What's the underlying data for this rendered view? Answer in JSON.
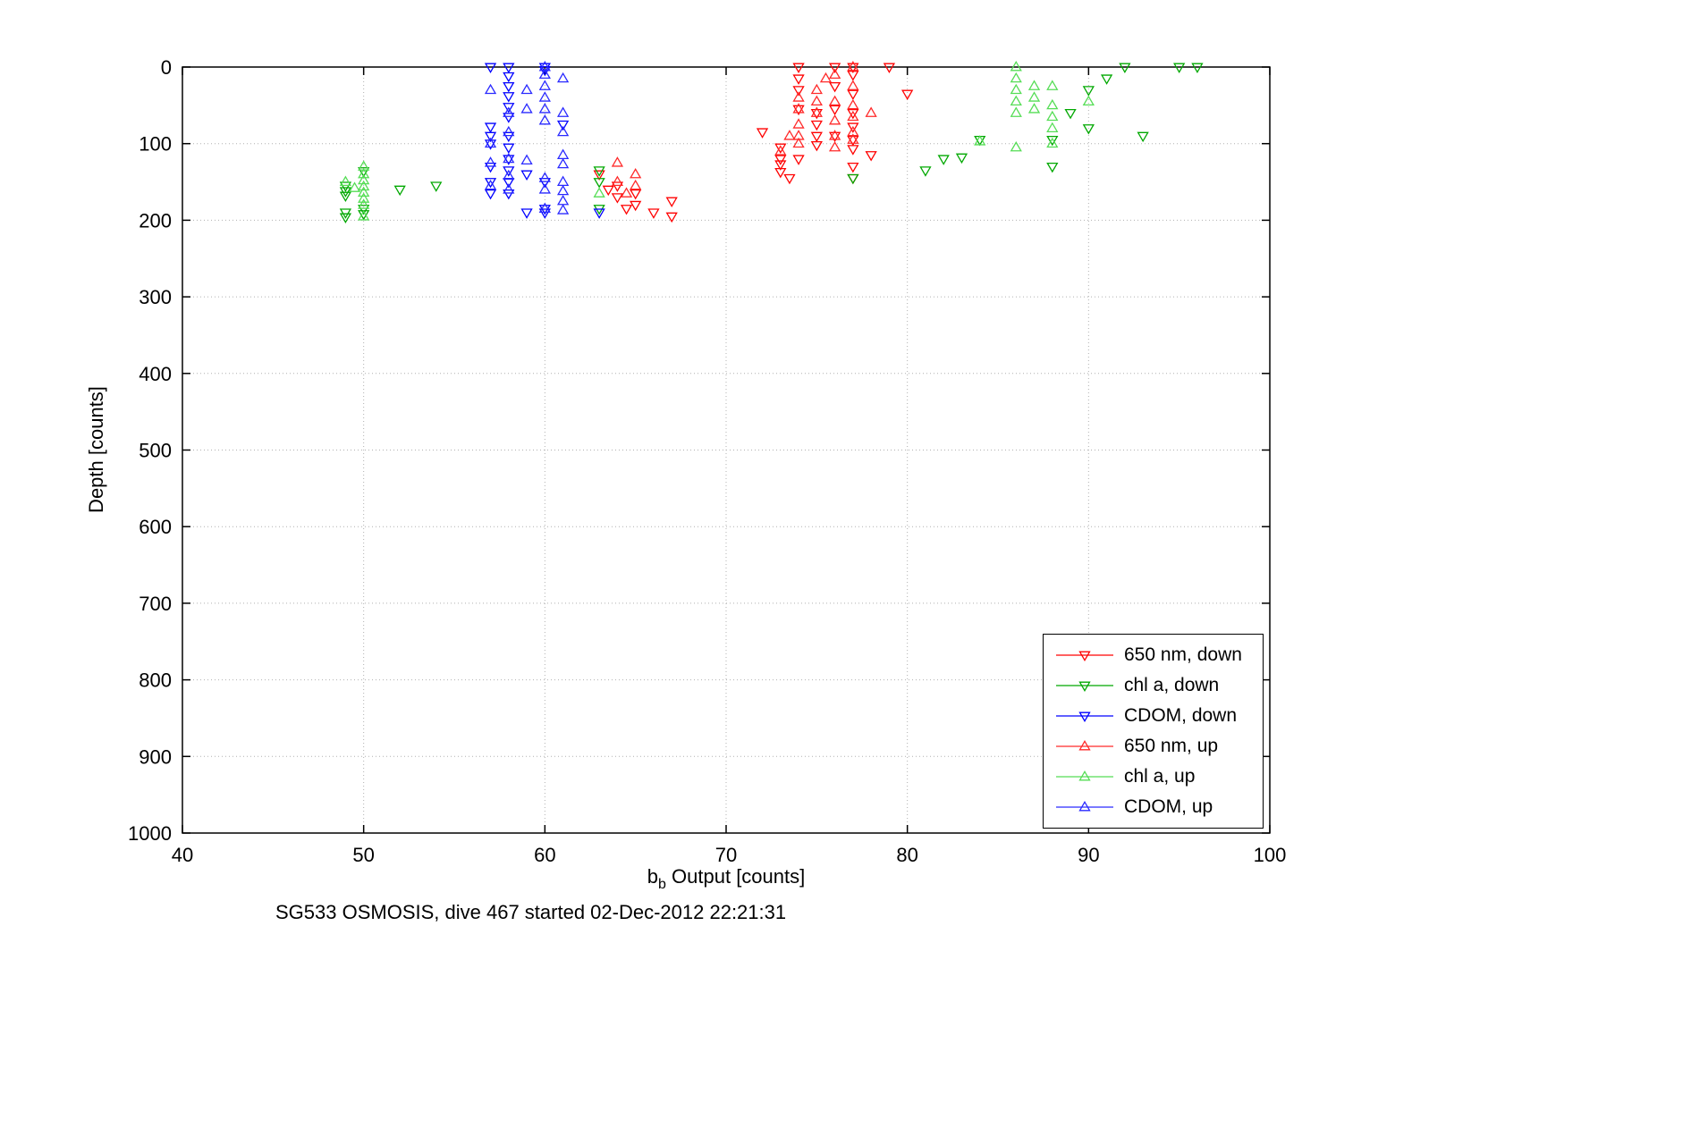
{
  "figure": {
    "title": "SG533 OSMOSIS, dive 467 started 02-Dec-2012 22:21:31"
  },
  "chart_data": {
    "type": "scatter",
    "title": "SG533 OSMOSIS, dive 467 started 02-Dec-2012 22:21:31",
    "xlabel": "b_b Output [counts]",
    "xlabel_main": "b",
    "xlabel_sub": "b",
    "xlabel_rest": " Output [counts]",
    "ylabel": "Depth [counts]",
    "xlim": [
      40,
      100
    ],
    "ylim": [
      0,
      1000
    ],
    "y_reversed": true,
    "xticks": [
      40,
      50,
      60,
      70,
      80,
      90,
      100
    ],
    "yticks": [
      0,
      100,
      200,
      300,
      400,
      500,
      600,
      700,
      800,
      900,
      1000
    ],
    "grid": "dotted",
    "grid_color": "#b0b0b0",
    "axis_color": "#000000",
    "legend_position": "bottom-right",
    "series": [
      {
        "name": "650 nm, down",
        "marker": "triangle-down",
        "color": "#ff0000",
        "points": [
          [
            63,
            140
          ],
          [
            63.5,
            160
          ],
          [
            64,
            155
          ],
          [
            64,
            170
          ],
          [
            64.5,
            185
          ],
          [
            65,
            165
          ],
          [
            65,
            180
          ],
          [
            66,
            190
          ],
          [
            67,
            175
          ],
          [
            67,
            195
          ],
          [
            72,
            85
          ],
          [
            73,
            105
          ],
          [
            73,
            120
          ],
          [
            73,
            127
          ],
          [
            73,
            137
          ],
          [
            73.5,
            145
          ],
          [
            74,
            0
          ],
          [
            74,
            15
          ],
          [
            74,
            30
          ],
          [
            74,
            55
          ],
          [
            74,
            120
          ],
          [
            75,
            60
          ],
          [
            75,
            75
          ],
          [
            75,
            90
          ],
          [
            75,
            102
          ],
          [
            76,
            0
          ],
          [
            76,
            25
          ],
          [
            76,
            55
          ],
          [
            76,
            90
          ],
          [
            77,
            0
          ],
          [
            77,
            10
          ],
          [
            77,
            35
          ],
          [
            77,
            60
          ],
          [
            77,
            78
          ],
          [
            77,
            95
          ],
          [
            77,
            107
          ],
          [
            77,
            130
          ],
          [
            77,
            145
          ],
          [
            78,
            115
          ],
          [
            79,
            0
          ],
          [
            80,
            35
          ]
        ]
      },
      {
        "name": "chl a, down",
        "marker": "triangle-down",
        "color": "#00a800",
        "points": [
          [
            49,
            155
          ],
          [
            49,
            162
          ],
          [
            49,
            168
          ],
          [
            49,
            190
          ],
          [
            49,
            196
          ],
          [
            50,
            136
          ],
          [
            50,
            185
          ],
          [
            50,
            192
          ],
          [
            52,
            160
          ],
          [
            54,
            155
          ],
          [
            63,
            135
          ],
          [
            63,
            150
          ],
          [
            63,
            185
          ],
          [
            77,
            145
          ],
          [
            81,
            135
          ],
          [
            82,
            120
          ],
          [
            83,
            118
          ],
          [
            84,
            95
          ],
          [
            88,
            95
          ],
          [
            88,
            130
          ],
          [
            89,
            60
          ],
          [
            90,
            30
          ],
          [
            90,
            80
          ],
          [
            91,
            15
          ],
          [
            92,
            0
          ],
          [
            93,
            90
          ],
          [
            95,
            0
          ],
          [
            96,
            0
          ]
        ]
      },
      {
        "name": "CDOM, down",
        "marker": "triangle-down",
        "color": "#0000ff",
        "points": [
          [
            57,
            0
          ],
          [
            57,
            78
          ],
          [
            57,
            90
          ],
          [
            57,
            100
          ],
          [
            57,
            130
          ],
          [
            57,
            150
          ],
          [
            57,
            165
          ],
          [
            58,
            0
          ],
          [
            58,
            12
          ],
          [
            58,
            25
          ],
          [
            58,
            38
          ],
          [
            58,
            52
          ],
          [
            58,
            65
          ],
          [
            58,
            90
          ],
          [
            58,
            105
          ],
          [
            58,
            120
          ],
          [
            58,
            135
          ],
          [
            58,
            150
          ],
          [
            58,
            165
          ],
          [
            59,
            140
          ],
          [
            59,
            190
          ],
          [
            60,
            0
          ],
          [
            60,
            4
          ],
          [
            60,
            150
          ],
          [
            60,
            185
          ],
          [
            60,
            190
          ],
          [
            61,
            75
          ],
          [
            63,
            190
          ]
        ]
      },
      {
        "name": "650 nm, up",
        "marker": "triangle-up",
        "color": "#ff2a2a",
        "points": [
          [
            64,
            125
          ],
          [
            64,
            150
          ],
          [
            64.5,
            165
          ],
          [
            65,
            140
          ],
          [
            65,
            155
          ],
          [
            73,
            110
          ],
          [
            73.5,
            90
          ],
          [
            74,
            40
          ],
          [
            74,
            55
          ],
          [
            74,
            75
          ],
          [
            74,
            90
          ],
          [
            74,
            100
          ],
          [
            75,
            30
          ],
          [
            75,
            45
          ],
          [
            75,
            60
          ],
          [
            75.5,
            15
          ],
          [
            76,
            10
          ],
          [
            76,
            45
          ],
          [
            76,
            70
          ],
          [
            76,
            90
          ],
          [
            76,
            105
          ],
          [
            77,
            0
          ],
          [
            77,
            25
          ],
          [
            77,
            50
          ],
          [
            77,
            65
          ],
          [
            77,
            85
          ],
          [
            77,
            95
          ],
          [
            78,
            60
          ]
        ]
      },
      {
        "name": "chl a, up",
        "marker": "triangle-up",
        "color": "#55dd55",
        "points": [
          [
            49,
            150
          ],
          [
            49.5,
            158
          ],
          [
            50,
            130
          ],
          [
            50,
            140
          ],
          [
            50,
            148
          ],
          [
            50,
            156
          ],
          [
            50,
            164
          ],
          [
            50,
            172
          ],
          [
            50,
            180
          ],
          [
            50,
            195
          ],
          [
            63,
            165
          ],
          [
            84,
            97
          ],
          [
            86,
            0
          ],
          [
            86,
            15
          ],
          [
            86,
            30
          ],
          [
            86,
            45
          ],
          [
            86,
            60
          ],
          [
            86,
            105
          ],
          [
            87,
            25
          ],
          [
            87,
            40
          ],
          [
            87,
            55
          ],
          [
            88,
            25
          ],
          [
            88,
            50
          ],
          [
            88,
            65
          ],
          [
            88,
            80
          ],
          [
            88,
            100
          ],
          [
            90,
            45
          ]
        ]
      },
      {
        "name": "CDOM, up",
        "marker": "triangle-up",
        "color": "#2a2aff",
        "points": [
          [
            57,
            30
          ],
          [
            57,
            100
          ],
          [
            57,
            125
          ],
          [
            57,
            155
          ],
          [
            58,
            60
          ],
          [
            58,
            85
          ],
          [
            58,
            120
          ],
          [
            58,
            142
          ],
          [
            58,
            160
          ],
          [
            59,
            30
          ],
          [
            59,
            55
          ],
          [
            59,
            122
          ],
          [
            60,
            0
          ],
          [
            60,
            10
          ],
          [
            60,
            25
          ],
          [
            60,
            40
          ],
          [
            60,
            55
          ],
          [
            60,
            70
          ],
          [
            60,
            145
          ],
          [
            60,
            160
          ],
          [
            60,
            185
          ],
          [
            61,
            15
          ],
          [
            61,
            60
          ],
          [
            61,
            85
          ],
          [
            61,
            115
          ],
          [
            61,
            127
          ],
          [
            61,
            150
          ],
          [
            61,
            162
          ],
          [
            61,
            175
          ],
          [
            61,
            187
          ]
        ]
      }
    ]
  }
}
